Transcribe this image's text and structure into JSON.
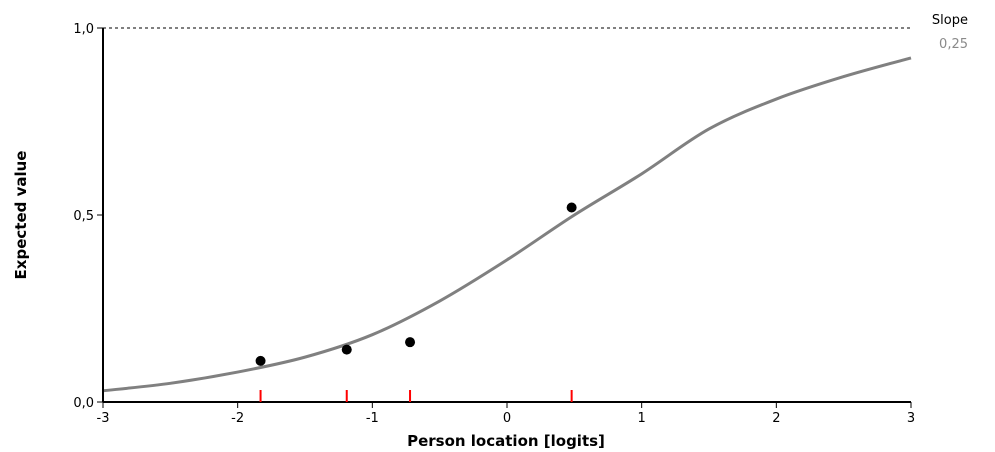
{
  "chart_data": {
    "type": "line",
    "xlabel": "Person location [logits]",
    "ylabel": "Expected value",
    "xlim": [
      -3,
      3
    ],
    "ylim": [
      0,
      1
    ],
    "x_ticks": [
      -3,
      -2,
      -1,
      0,
      1,
      2,
      3
    ],
    "x_tick_labels": [
      "-3",
      "-2",
      "-1",
      "0",
      "1",
      "2",
      "3"
    ],
    "y_ticks": [
      0,
      0.5,
      1
    ],
    "y_tick_labels": [
      "0,0",
      "0,5",
      "1,0"
    ],
    "reference_line_y": 1.0,
    "legend": {
      "title": "Slope",
      "value": "0,25"
    },
    "series": [
      {
        "type": "curve",
        "color": "#808080",
        "x": [
          -3,
          -2.5,
          -2,
          -1.5,
          -1,
          -0.5,
          0,
          0.5,
          1,
          1.5,
          2,
          2.5,
          3
        ],
        "values": [
          0.03,
          0.05,
          0.08,
          0.12,
          0.18,
          0.27,
          0.38,
          0.5,
          0.61,
          0.73,
          0.81,
          0.87,
          0.92
        ]
      },
      {
        "type": "points",
        "color": "#000000",
        "x": [
          -1.83,
          -1.19,
          -0.72,
          0.48
        ],
        "values": [
          0.11,
          0.14,
          0.16,
          0.52
        ]
      }
    ],
    "class_markers": {
      "color": "#ff0000",
      "x": [
        -1.83,
        -1.19,
        -0.72,
        0.48
      ]
    }
  }
}
